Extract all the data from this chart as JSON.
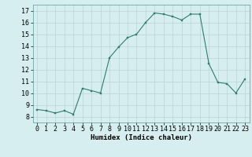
{
  "x": [
    0,
    1,
    2,
    3,
    4,
    5,
    6,
    7,
    8,
    9,
    10,
    11,
    12,
    13,
    14,
    15,
    16,
    17,
    18,
    19,
    20,
    21,
    22,
    23
  ],
  "y": [
    8.6,
    8.5,
    8.3,
    8.5,
    8.2,
    10.4,
    10.2,
    10.0,
    13.0,
    13.9,
    14.7,
    15.0,
    16.0,
    16.8,
    16.7,
    16.5,
    16.2,
    16.7,
    16.7,
    12.5,
    10.9,
    10.8,
    10.0,
    11.2
  ],
  "xlabel": "Humidex (Indice chaleur)",
  "ylim": [
    7.5,
    17.5
  ],
  "xlim": [
    -0.5,
    23.5
  ],
  "yticks": [
    8,
    9,
    10,
    11,
    12,
    13,
    14,
    15,
    16,
    17
  ],
  "xticks": [
    0,
    1,
    2,
    3,
    4,
    5,
    6,
    7,
    8,
    9,
    10,
    11,
    12,
    13,
    14,
    15,
    16,
    17,
    18,
    19,
    20,
    21,
    22,
    23
  ],
  "line_color": "#2e7d6e",
  "marker": "s",
  "marker_size": 2.0,
  "bg_color": "#d6eef0",
  "grid_color": "#b8d4d8",
  "xlabel_fontsize": 6.5,
  "tick_fontsize": 6.0
}
